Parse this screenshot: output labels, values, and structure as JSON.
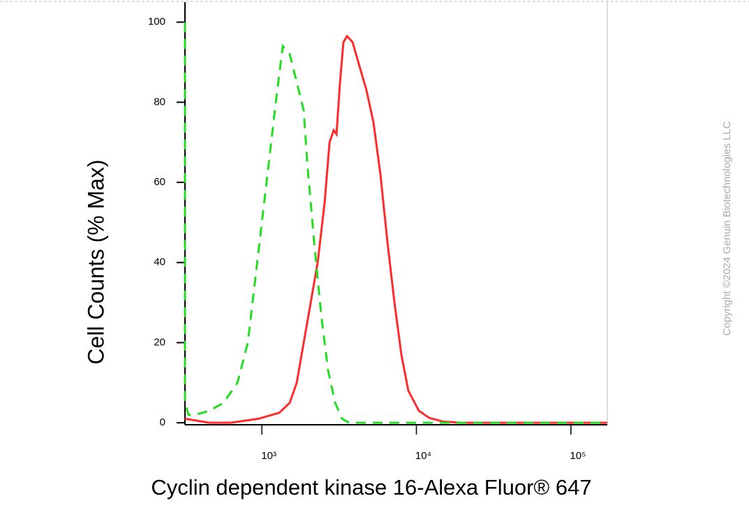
{
  "chart_data": {
    "type": "line",
    "xlabel": "Cyclin dependent kinase 16-Alexa Fluor® 647",
    "ylabel": "Cell Counts (% Max)",
    "copyright": "Copyright ©2024 Genuin Biotechnologies LLC",
    "xscale": "log",
    "xlim": [
      318,
      172000
    ],
    "ylim": [
      -0.5,
      105
    ],
    "xticks": [
      {
        "value": 1000,
        "label": "10³"
      },
      {
        "value": 10000,
        "label": "10⁴"
      },
      {
        "value": 100000,
        "label": "10⁵"
      }
    ],
    "yticks": [
      0,
      20,
      40,
      60,
      80,
      100
    ],
    "grid": false,
    "series": [
      {
        "color": "#ff2a2a",
        "dash": false,
        "x": [
          318,
          458,
          627,
          950,
          1296,
          1516,
          1682,
          1866,
          2070,
          2297,
          2548,
          2742,
          2917,
          3041,
          3206,
          3373,
          3556,
          3864,
          4285,
          4754,
          5274,
          5851,
          6501,
          7211,
          7998,
          8872,
          10370,
          12130,
          14930,
          19360,
          171800
        ],
        "values": [
          1,
          0,
          0,
          1,
          2.5,
          5,
          10,
          20,
          30,
          40,
          55,
          70,
          73,
          72,
          85,
          95,
          96.5,
          95,
          89,
          83,
          75,
          62,
          45,
          30,
          17,
          8,
          3,
          1.2,
          0.3,
          0,
          0
        ]
      },
      {
        "color": "#22dd22",
        "dash": true,
        "x": [
          318,
          318,
          335,
          372,
          458,
          565,
          695,
          812,
          901,
          1000,
          1110,
          1231,
          1366,
          1516,
          1682,
          1866,
          1965,
          2181,
          2420,
          2686,
          2980,
          3307,
          3666,
          171800
        ],
        "values": [
          100,
          5,
          2,
          2,
          3,
          5,
          10,
          20,
          35,
          50,
          65,
          80,
          94,
          92,
          85,
          78,
          65,
          45,
          27,
          13,
          5,
          1,
          0,
          0
        ]
      }
    ]
  }
}
